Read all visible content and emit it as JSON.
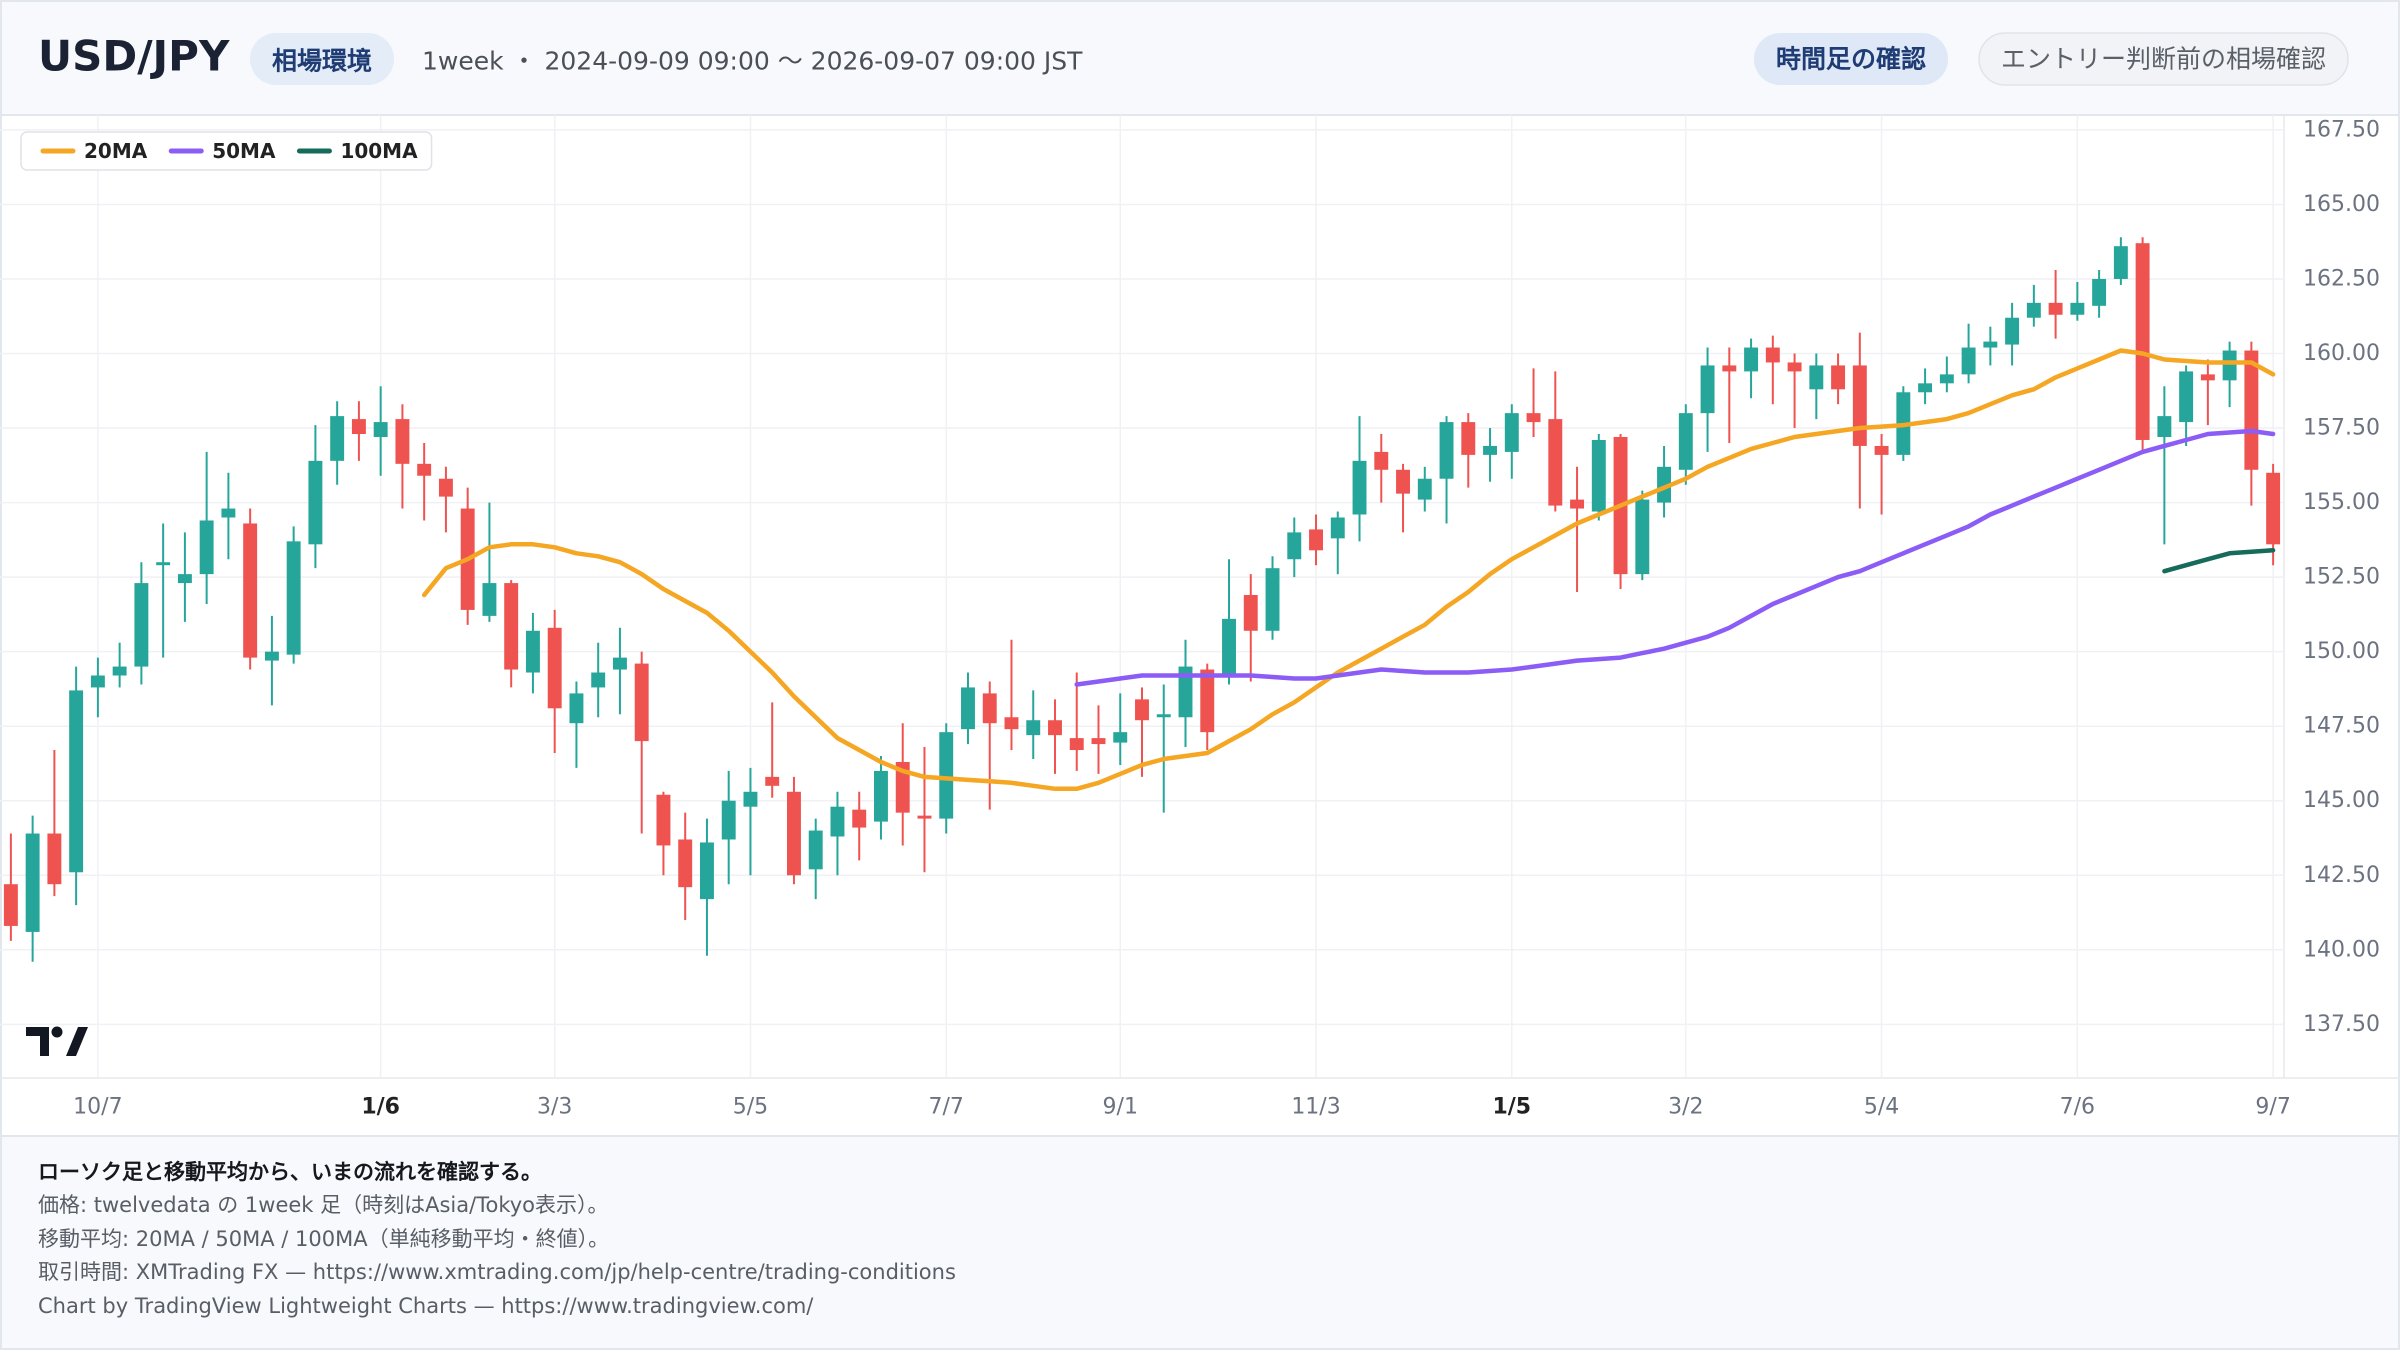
{
  "header": {
    "symbol": "USD/JPY",
    "badge": "相場環境",
    "meta": "1week ・ 2024-09-09 09:00 〜 2026-09-07 09:00 JST",
    "buttons": [
      "時間足の確認",
      "エントリー判断前の相場確認"
    ]
  },
  "chart_data": {
    "type": "candlestick",
    "categories": [
      null,
      null,
      null,
      null,
      "10/7",
      null,
      null,
      null,
      null,
      null,
      null,
      null,
      null,
      null,
      null,
      null,
      null,
      "1/6",
      null,
      null,
      null,
      null,
      null,
      null,
      null,
      "3/3",
      null,
      null,
      null,
      null,
      null,
      null,
      null,
      null,
      "5/5",
      null,
      null,
      null,
      null,
      null,
      null,
      null,
      null,
      "7/7",
      null,
      null,
      null,
      null,
      null,
      null,
      null,
      "9/1",
      null,
      null,
      null,
      null,
      null,
      null,
      null,
      null,
      "11/3",
      null,
      null,
      null,
      null,
      null,
      null,
      null,
      null,
      "1/5",
      null,
      null,
      null,
      null,
      null,
      null,
      null,
      "3/2",
      null,
      null,
      null,
      null,
      null,
      null,
      null,
      null,
      "5/4",
      null,
      null,
      null,
      null,
      null,
      null,
      null,
      null,
      "7/6",
      null,
      null,
      null,
      null,
      null,
      null,
      null,
      null,
      "9/7"
    ],
    "open": [
      142.2,
      140.6,
      143.9,
      142.6,
      148.8,
      149.2,
      149.5,
      152.9,
      152.3,
      152.6,
      154.5,
      154.3,
      149.7,
      149.9,
      153.6,
      156.4,
      157.8,
      157.2,
      157.8,
      156.3,
      155.8,
      154.8,
      151.2,
      152.3,
      149.3,
      150.8,
      147.6,
      148.8,
      149.4,
      149.6,
      145.2,
      143.7,
      141.7,
      143.7,
      144.8,
      145.8,
      145.3,
      142.7,
      143.8,
      144.7,
      144.3,
      146.3,
      144.5,
      144.4,
      147.4,
      148.6,
      147.8,
      147.2,
      147.7,
      147.1,
      147.1,
      146.95,
      148.4,
      147.8,
      147.8,
      149.4,
      149.2,
      151.9,
      150.7,
      153.1,
      154.1,
      153.8,
      154.6,
      156.7,
      156.1,
      155.1,
      155.8,
      157.7,
      156.6,
      156.7,
      158.0,
      157.8,
      155.1,
      154.7,
      157.2,
      152.6,
      155.0,
      156.1,
      158.0,
      159.6,
      159.4,
      160.2,
      159.7,
      158.8,
      159.6,
      159.6,
      156.9,
      156.6,
      158.7,
      159.0,
      159.3,
      160.2,
      160.3,
      161.2,
      161.7,
      161.3,
      161.6,
      162.5,
      163.7,
      157.2,
      157.7,
      159.3,
      159.1,
      160.1,
      156.0
    ],
    "high": [
      143.9,
      144.5,
      146.7,
      149.5,
      149.8,
      150.3,
      153.0,
      154.3,
      154.0,
      156.7,
      156.0,
      154.8,
      151.2,
      154.2,
      157.6,
      158.4,
      158.4,
      158.9,
      158.3,
      157.0,
      156.2,
      155.5,
      155.0,
      152.4,
      151.3,
      151.4,
      149.0,
      150.3,
      150.8,
      150.0,
      145.3,
      144.6,
      144.4,
      146.0,
      146.1,
      148.3,
      145.8,
      144.4,
      145.3,
      145.3,
      146.5,
      147.6,
      146.8,
      147.6,
      149.3,
      149.0,
      150.4,
      148.7,
      148.4,
      149.3,
      148.2,
      148.6,
      148.8,
      148.9,
      150.4,
      149.6,
      153.1,
      152.6,
      153.2,
      154.5,
      154.6,
      154.7,
      157.9,
      157.3,
      156.3,
      156.2,
      157.9,
      158.0,
      157.5,
      158.3,
      159.5,
      159.4,
      156.2,
      157.3,
      157.3,
      155.4,
      156.9,
      158.3,
      160.2,
      160.2,
      160.5,
      160.6,
      160.0,
      160.0,
      160.0,
      160.7,
      157.3,
      158.9,
      159.5,
      159.9,
      161.0,
      160.9,
      161.7,
      162.3,
      162.8,
      162.4,
      162.8,
      163.9,
      163.9,
      158.9,
      159.6,
      159.8,
      160.4,
      160.4,
      156.3
    ],
    "low": [
      140.3,
      139.6,
      141.8,
      141.5,
      147.8,
      148.8,
      148.9,
      149.8,
      151.0,
      151.6,
      153.1,
      149.4,
      148.2,
      149.6,
      152.8,
      155.6,
      156.4,
      155.9,
      154.8,
      154.4,
      154.0,
      150.9,
      151.0,
      148.8,
      148.6,
      146.6,
      146.1,
      147.8,
      147.9,
      143.9,
      142.5,
      141.0,
      139.8,
      142.2,
      142.5,
      145.1,
      142.2,
      141.7,
      142.5,
      143.0,
      143.7,
      143.5,
      142.6,
      143.9,
      146.9,
      144.7,
      146.7,
      146.4,
      145.9,
      146.0,
      145.9,
      146.2,
      145.8,
      144.6,
      146.8,
      146.7,
      148.9,
      149.0,
      150.4,
      152.5,
      152.9,
      152.6,
      153.7,
      155.0,
      154.0,
      154.7,
      154.3,
      155.5,
      155.7,
      155.8,
      157.2,
      154.7,
      152.0,
      154.4,
      152.1,
      152.4,
      154.5,
      155.6,
      156.7,
      157.0,
      158.5,
      158.3,
      157.5,
      157.8,
      158.3,
      154.8,
      154.6,
      156.4,
      158.3,
      158.7,
      159.0,
      159.6,
      159.6,
      160.9,
      160.5,
      161.1,
      161.2,
      162.3,
      156.7,
      153.6,
      156.9,
      157.6,
      158.2,
      154.9,
      152.9
    ],
    "close": [
      140.8,
      143.9,
      142.2,
      148.7,
      149.2,
      149.5,
      152.3,
      153.0,
      152.6,
      154.4,
      154.8,
      149.8,
      150.0,
      153.7,
      156.4,
      157.9,
      157.3,
      157.7,
      156.3,
      155.9,
      155.2,
      151.4,
      152.3,
      149.4,
      150.7,
      148.1,
      148.6,
      149.3,
      149.8,
      147.0,
      143.5,
      142.1,
      143.6,
      145.0,
      145.3,
      145.5,
      142.5,
      144.0,
      144.8,
      144.1,
      146.0,
      144.6,
      144.4,
      147.3,
      148.8,
      147.6,
      147.4,
      147.7,
      147.2,
      146.7,
      146.9,
      147.3,
      147.7,
      147.9,
      149.5,
      147.3,
      151.1,
      150.7,
      152.8,
      154.0,
      153.4,
      154.5,
      156.4,
      156.1,
      155.3,
      155.8,
      157.7,
      156.6,
      156.9,
      158.0,
      157.7,
      154.9,
      154.8,
      157.1,
      152.6,
      155.1,
      156.2,
      158.0,
      159.6,
      159.4,
      160.2,
      159.7,
      159.4,
      159.6,
      158.8,
      156.9,
      156.6,
      158.7,
      159.0,
      159.3,
      160.2,
      160.4,
      161.2,
      161.7,
      161.3,
      161.7,
      162.5,
      163.6,
      157.1,
      157.9,
      159.4,
      159.1,
      160.1,
      156.1,
      153.6
    ],
    "up_color": "#26a69a",
    "down_color": "#ef5350",
    "series": [
      {
        "name": "20MA",
        "color": "#f5a623",
        "values": [
          null,
          null,
          null,
          null,
          null,
          null,
          null,
          null,
          null,
          null,
          null,
          null,
          null,
          null,
          null,
          null,
          null,
          null,
          null,
          151.9,
          152.8,
          153.1,
          153.5,
          153.6,
          153.6,
          153.5,
          153.3,
          153.2,
          153.0,
          152.6,
          152.1,
          151.7,
          151.3,
          150.7,
          150.0,
          149.3,
          148.5,
          147.8,
          147.1,
          146.7,
          146.3,
          146.0,
          145.8,
          145.75,
          145.7,
          145.65,
          145.6,
          145.5,
          145.4,
          145.4,
          145.6,
          145.9,
          146.2,
          146.4,
          146.5,
          146.6,
          147.0,
          147.4,
          147.9,
          148.3,
          148.8,
          149.3,
          149.7,
          150.1,
          150.5,
          150.9,
          151.5,
          152.0,
          152.6,
          153.1,
          153.5,
          153.9,
          154.3,
          154.6,
          154.9,
          155.2,
          155.5,
          155.8,
          156.2,
          156.5,
          156.8,
          157.0,
          157.2,
          157.3,
          157.4,
          157.5,
          157.55,
          157.6,
          157.7,
          157.8,
          158.0,
          158.3,
          158.6,
          158.8,
          159.2,
          159.5,
          159.8,
          160.1,
          160.0,
          159.8,
          159.75,
          159.7,
          159.7,
          159.7,
          159.3
        ]
      },
      {
        "name": "50MA",
        "color": "#8b5cf6",
        "values": [
          null,
          null,
          null,
          null,
          null,
          null,
          null,
          null,
          null,
          null,
          null,
          null,
          null,
          null,
          null,
          null,
          null,
          null,
          null,
          null,
          null,
          null,
          null,
          null,
          null,
          null,
          null,
          null,
          null,
          null,
          null,
          null,
          null,
          null,
          null,
          null,
          null,
          null,
          null,
          null,
          null,
          null,
          null,
          null,
          null,
          null,
          null,
          null,
          null,
          148.9,
          149.0,
          149.1,
          149.2,
          149.2,
          149.2,
          149.2,
          149.2,
          149.2,
          149.15,
          149.1,
          149.1,
          149.2,
          149.3,
          149.4,
          149.35,
          149.3,
          149.3,
          149.3,
          149.35,
          149.4,
          149.5,
          149.6,
          149.7,
          149.75,
          149.8,
          149.95,
          150.1,
          150.3,
          150.5,
          150.8,
          151.2,
          151.6,
          151.9,
          152.2,
          152.5,
          152.7,
          153.0,
          153.3,
          153.6,
          153.9,
          154.2,
          154.6,
          154.9,
          155.2,
          155.5,
          155.8,
          156.1,
          156.4,
          156.7,
          156.9,
          157.1,
          157.3,
          157.35,
          157.4,
          157.3
        ]
      },
      {
        "name": "100MA",
        "color": "#166b5a",
        "values": [
          null,
          null,
          null,
          null,
          null,
          null,
          null,
          null,
          null,
          null,
          null,
          null,
          null,
          null,
          null,
          null,
          null,
          null,
          null,
          null,
          null,
          null,
          null,
          null,
          null,
          null,
          null,
          null,
          null,
          null,
          null,
          null,
          null,
          null,
          null,
          null,
          null,
          null,
          null,
          null,
          null,
          null,
          null,
          null,
          null,
          null,
          null,
          null,
          null,
          null,
          null,
          null,
          null,
          null,
          null,
          null,
          null,
          null,
          null,
          null,
          null,
          null,
          null,
          null,
          null,
          null,
          null,
          null,
          null,
          null,
          null,
          null,
          null,
          null,
          null,
          null,
          null,
          null,
          null,
          null,
          null,
          null,
          null,
          null,
          null,
          null,
          null,
          null,
          null,
          null,
          null,
          null,
          null,
          null,
          null,
          null,
          null,
          null,
          null,
          152.7,
          152.9,
          153.1,
          153.3,
          153.35,
          153.4
        ]
      }
    ],
    "ylim": [
      135.7,
      168.0
    ],
    "yticks": [
      {
        "value": 137.5,
        "label": "137.50"
      },
      {
        "value": 140,
        "label": "140.00"
      },
      {
        "value": 142.5,
        "label": "142.50"
      },
      {
        "value": 145,
        "label": "145.00"
      },
      {
        "value": 147.5,
        "label": "147.50"
      },
      {
        "value": 150,
        "label": "150.00"
      },
      {
        "value": 152.5,
        "label": "152.50"
      },
      {
        "value": 155,
        "label": "155.00"
      },
      {
        "value": 157.5,
        "label": "157.50"
      },
      {
        "value": 160,
        "label": "160.00"
      },
      {
        "value": 162.5,
        "label": "162.50"
      },
      {
        "value": 165,
        "label": "165.00"
      },
      {
        "value": 167.5,
        "label": "167.50"
      }
    ],
    "grid": true,
    "legend": "top-left"
  },
  "footer": {
    "lines": [
      "ローソク足と移動平均から、いまの流れを確認する。",
      "価格: twelvedata の 1week 足（時刻はAsia/Tokyo表示）。",
      "移動平均: 20MA / 50MA / 100MA（単純移動平均・終値）。",
      "取引時間: XMTrading FX — https://www.xmtrading.com/jp/help-centre/trading-conditions",
      "Chart by TradingView Lightweight Charts — https://www.tradingview.com/"
    ]
  }
}
